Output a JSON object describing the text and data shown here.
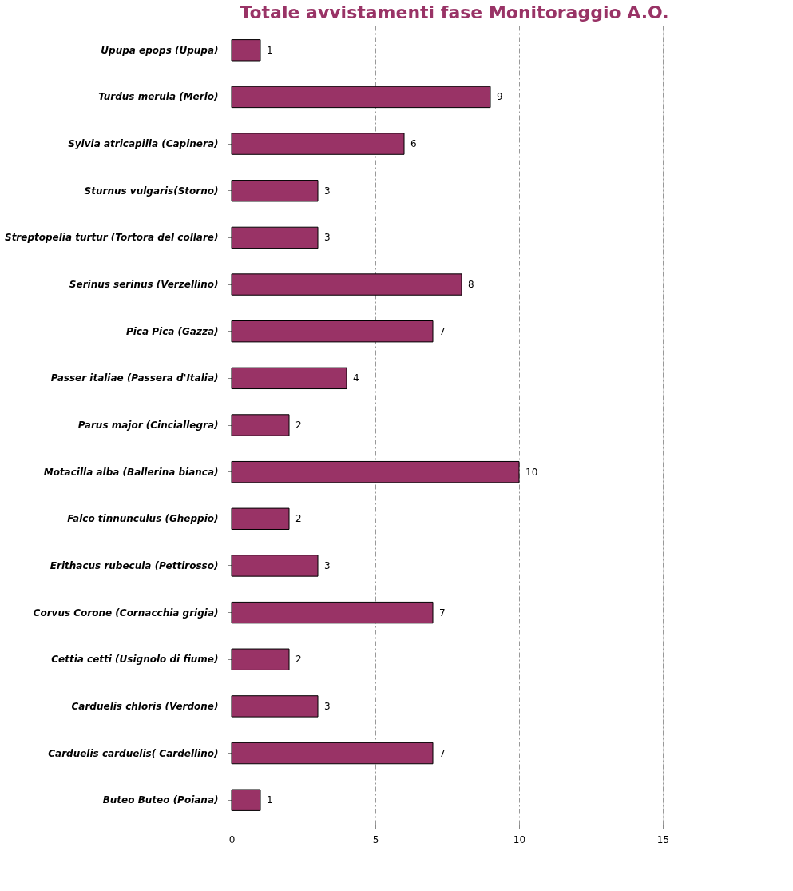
{
  "chart_data": {
    "type": "bar",
    "orientation": "horizontal",
    "title": "Totale avvistamenti fase Monitoraggio A.O.",
    "categories": [
      "Upupa epops (Upupa)",
      "Turdus merula (Merlo)",
      "Sylvia  atricapilla (Capinera)",
      "Sturnus vulgaris(Storno)",
      "Streptopelia turtur (Tortora del collare)",
      "Serinus serinus (Verzellino)",
      "Pica Pica (Gazza)",
      "Passer italiae (Passera d'Italia)",
      "Parus major (Cinciallegra)",
      "Motacilla alba (Ballerina bianca)",
      "Falco tinnunculus (Gheppio)",
      "Erithacus rubecula (Pettirosso)",
      "Corvus Corone (Cornacchia grigia)",
      "Cettia cetti (Usignolo di fiume)",
      "Carduelis chloris (Verdone)",
      "Carduelis carduelis( Cardellino)",
      "Buteo Buteo  (Poiana)"
    ],
    "values": [
      1,
      9,
      6,
      3,
      3,
      8,
      7,
      4,
      2,
      10,
      2,
      3,
      7,
      2,
      3,
      7,
      1
    ],
    "color": "#993366",
    "xlim": [
      0,
      15
    ],
    "xticks": [
      0,
      5,
      10,
      15
    ],
    "grid": "x",
    "data_labels": true
  }
}
